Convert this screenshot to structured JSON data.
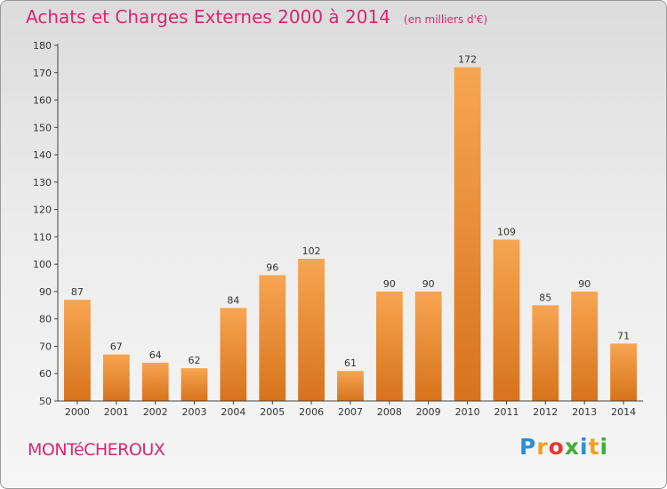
{
  "title": "Achats et Charges Externes 2000 à 2014",
  "unit_note": "(en milliers d'€)",
  "commune": "MONTéCHEROUX",
  "logo": {
    "text": "Proxiti",
    "letters": [
      {
        "ch": "P",
        "color": "#2b8fd6"
      },
      {
        "ch": "r",
        "color": "#f0a020"
      },
      {
        "ch": "o",
        "color": "#e23a2e"
      },
      {
        "ch": "x",
        "color": "#3fae3a"
      },
      {
        "ch": "i",
        "color": "#2b8fd6"
      },
      {
        "ch": "t",
        "color": "#f0a020"
      },
      {
        "ch": "i",
        "color": "#3fae3a"
      }
    ]
  },
  "colors": {
    "bar_light": "#f7a552",
    "bar_dark": "#d7731c",
    "title": "#d6286f",
    "axis": "#444444"
  },
  "chart_data": {
    "type": "bar",
    "categories": [
      "2000",
      "2001",
      "2002",
      "2003",
      "2004",
      "2005",
      "2006",
      "2007",
      "2008",
      "2009",
      "2010",
      "2011",
      "2012",
      "2013",
      "2014"
    ],
    "values": [
      87,
      67,
      64,
      62,
      84,
      96,
      102,
      61,
      90,
      90,
      172,
      109,
      85,
      90,
      71
    ],
    "ylim": [
      50,
      180
    ],
    "yticks": [
      50,
      60,
      70,
      80,
      90,
      100,
      110,
      120,
      130,
      140,
      150,
      160,
      170,
      180
    ],
    "grid": false,
    "data_labels": true
  }
}
